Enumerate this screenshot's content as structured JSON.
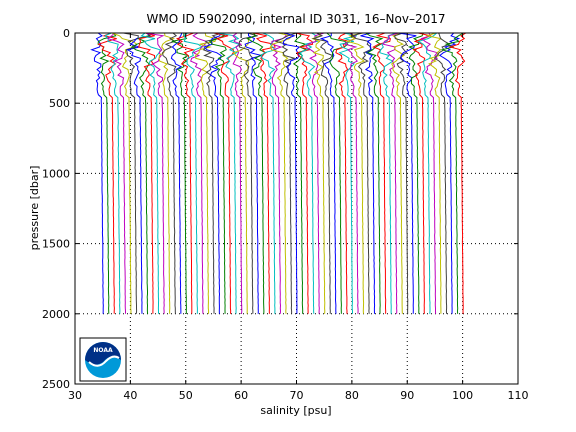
{
  "chart_data": {
    "type": "line",
    "title": "WMO ID 5902090, internal ID 3031, 16–Nov–2017",
    "xlabel": "salinity [psu]",
    "ylabel": "pressure [dbar]",
    "xlim": [
      30,
      110
    ],
    "ylim": [
      0,
      2500
    ],
    "y_reversed": true,
    "grid": "dotted",
    "xticks": [
      30,
      40,
      50,
      60,
      70,
      80,
      90,
      100,
      110
    ],
    "yticks": [
      0,
      500,
      1000,
      1500,
      2000,
      2500
    ],
    "profiles": {
      "count": 66,
      "salinity_start_at_surface": 34.2,
      "salinity_step": 1.0,
      "surface_pressure": 0,
      "max_pressure": 2000,
      "upper_layer_pressure": 450,
      "colors": [
        "#0000ff",
        "#008000",
        "#ff0000",
        "#00bfbf",
        "#bf00bf",
        "#bfbf00",
        "#404040"
      ]
    },
    "logo": {
      "label": "NOAA",
      "colors": [
        "#003087",
        "#0099d8",
        "#ffffff"
      ]
    }
  }
}
